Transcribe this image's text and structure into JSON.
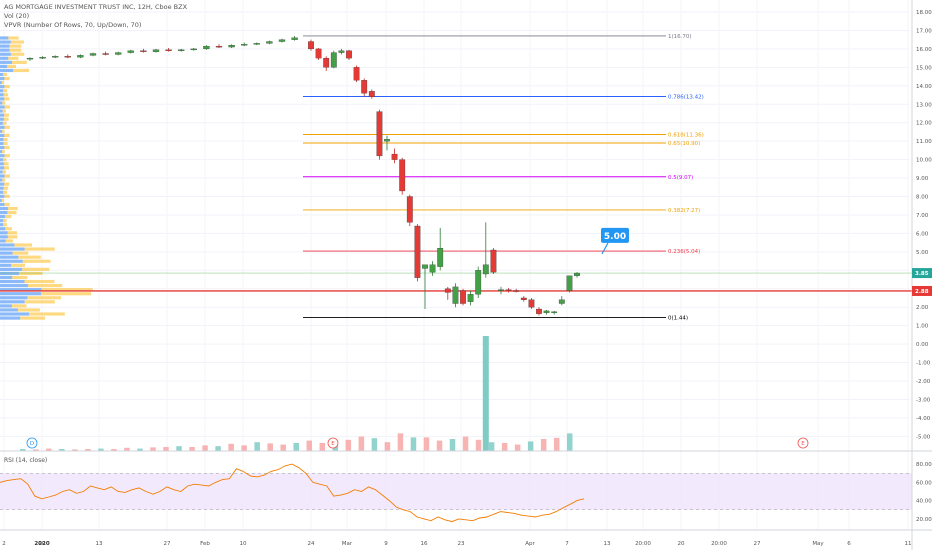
{
  "header": {
    "title": "AG MORTGAGE INVESTMENT TRUST INC, 12H, Cboe BZX",
    "vol_label": "Vol (20)",
    "vpvr_label": "VPVR (Number Of Rows, 70, Up/Down, 70)"
  },
  "chart_data": {
    "type": "candlestick",
    "price_axis": {
      "ticks": [
        "18.00",
        "17.00",
        "16.00",
        "15.00",
        "14.00",
        "13.00",
        "12.00",
        "11.00",
        "10.00",
        "9.00",
        "8.00",
        "7.00",
        "6.00",
        "5.00",
        "4.00",
        "3.00",
        "2.00",
        "1.00",
        "0.00",
        "-1.00",
        "-2.00",
        "-3.00",
        "-4.00",
        "-5.00"
      ],
      "last_price_label": "3.85",
      "support_label": "2.88"
    },
    "time_axis": {
      "labels": [
        "2",
        "20",
        "2020",
        "13",
        "27",
        "Feb",
        "10",
        "24",
        "Mar",
        "9",
        "16",
        "23",
        "Apr",
        "7",
        "13",
        "20:00",
        "20",
        "20:00",
        "27",
        "May",
        "6",
        "11"
      ]
    },
    "fibonacci": [
      {
        "label": "1(16.70)",
        "value": 16.7,
        "color": "#787b86"
      },
      {
        "label": "0.786(13.42)",
        "value": 13.42,
        "color": "#2962ff"
      },
      {
        "label": "0.618(11.36)",
        "value": 11.36,
        "color": "#f0a000"
      },
      {
        "label": "0.65(10.90)",
        "value": 10.9,
        "color": "#f0a000"
      },
      {
        "label": "0.5(9.07)",
        "value": 9.07,
        "color": "#d500f9"
      },
      {
        "label": "0.382(7.27)",
        "value": 7.27,
        "color": "#f0a000"
      },
      {
        "label": "0.236(5.04)",
        "value": 5.04,
        "color": "#f23645"
      },
      {
        "label": "0(1.44)",
        "value": 1.44,
        "color": "#000000"
      }
    ],
    "callout": {
      "label": "5.00",
      "value": 5.0
    },
    "candles_flat": [
      {
        "o": 15.45,
        "h": 15.55,
        "l": 15.35,
        "c": 15.5
      },
      {
        "o": 15.5,
        "h": 15.6,
        "l": 15.45,
        "c": 15.55
      },
      {
        "o": 15.55,
        "h": 15.65,
        "l": 15.5,
        "c": 15.6
      },
      {
        "o": 15.6,
        "h": 15.7,
        "l": 15.5,
        "c": 15.55
      },
      {
        "o": 15.55,
        "h": 15.7,
        "l": 15.5,
        "c": 15.65
      },
      {
        "o": 15.65,
        "h": 15.8,
        "l": 15.6,
        "c": 15.75
      },
      {
        "o": 15.75,
        "h": 15.85,
        "l": 15.65,
        "c": 15.7
      },
      {
        "o": 15.7,
        "h": 15.85,
        "l": 15.65,
        "c": 15.8
      },
      {
        "o": 15.8,
        "h": 15.95,
        "l": 15.75,
        "c": 15.9
      },
      {
        "o": 15.9,
        "h": 16.0,
        "l": 15.8,
        "c": 15.85
      },
      {
        "o": 15.85,
        "h": 16.0,
        "l": 15.8,
        "c": 15.95
      },
      {
        "o": 15.95,
        "h": 16.05,
        "l": 15.85,
        "c": 15.9
      },
      {
        "o": 15.9,
        "h": 16.0,
        "l": 15.85,
        "c": 15.95
      },
      {
        "o": 15.95,
        "h": 16.05,
        "l": 15.9,
        "c": 16.0
      },
      {
        "o": 16.0,
        "h": 16.2,
        "l": 15.95,
        "c": 16.15
      },
      {
        "o": 16.15,
        "h": 16.25,
        "l": 16.05,
        "c": 16.1
      },
      {
        "o": 16.1,
        "h": 16.25,
        "l": 16.05,
        "c": 16.2
      },
      {
        "o": 16.2,
        "h": 16.35,
        "l": 16.15,
        "c": 16.25
      },
      {
        "o": 16.25,
        "h": 16.35,
        "l": 16.2,
        "c": 16.3
      },
      {
        "o": 16.3,
        "h": 16.45,
        "l": 16.25,
        "c": 16.4
      },
      {
        "o": 16.4,
        "h": 16.55,
        "l": 16.35,
        "c": 16.5
      },
      {
        "o": 16.5,
        "h": 16.7,
        "l": 16.45,
        "c": 16.6
      }
    ],
    "candles_crash": [
      {
        "o": 16.4,
        "h": 16.5,
        "l": 15.9,
        "c": 16.0
      },
      {
        "o": 16.0,
        "h": 16.05,
        "l": 15.4,
        "c": 15.5
      },
      {
        "o": 15.5,
        "h": 15.6,
        "l": 14.8,
        "c": 15.0
      },
      {
        "o": 15.0,
        "h": 15.9,
        "l": 14.95,
        "c": 15.8
      },
      {
        "o": 15.8,
        "h": 16.0,
        "l": 15.7,
        "c": 15.9
      },
      {
        "o": 15.9,
        "h": 15.95,
        "l": 15.4,
        "c": 15.5
      },
      {
        "o": 15.0,
        "h": 15.1,
        "l": 14.2,
        "c": 14.3
      },
      {
        "o": 14.3,
        "h": 14.4,
        "l": 13.4,
        "c": 13.6
      },
      {
        "o": 13.7,
        "h": 13.8,
        "l": 13.3,
        "c": 13.4
      },
      {
        "o": 12.6,
        "h": 12.7,
        "l": 10.0,
        "c": 10.2
      },
      {
        "o": 11.0,
        "h": 11.3,
        "l": 10.5,
        "c": 11.1
      },
      {
        "o": 10.3,
        "h": 10.6,
        "l": 9.8,
        "c": 10.0
      },
      {
        "o": 10.0,
        "h": 10.1,
        "l": 8.1,
        "c": 8.3
      },
      {
        "o": 8.0,
        "h": 8.1,
        "l": 6.4,
        "c": 6.6
      },
      {
        "o": 6.4,
        "h": 6.5,
        "l": 3.4,
        "c": 3.6
      },
      {
        "o": 4.1,
        "h": 4.2,
        "l": 1.9,
        "c": 4.3
      },
      {
        "o": 3.9,
        "h": 4.5,
        "l": 3.7,
        "c": 4.3
      },
      {
        "o": 4.2,
        "h": 6.3,
        "l": 4.0,
        "c": 5.2
      },
      {
        "o": 3.0,
        "h": 3.1,
        "l": 2.4,
        "c": 2.8
      },
      {
        "o": 2.2,
        "h": 3.3,
        "l": 2.0,
        "c": 3.1
      },
      {
        "o": 2.9,
        "h": 3.0,
        "l": 2.1,
        "c": 2.2
      },
      {
        "o": 2.3,
        "h": 2.9,
        "l": 2.1,
        "c": 2.7
      },
      {
        "o": 2.7,
        "h": 4.2,
        "l": 2.5,
        "c": 4.0
      },
      {
        "o": 3.8,
        "h": 6.6,
        "l": 3.6,
        "c": 4.3
      },
      {
        "o": 5.1,
        "h": 5.2,
        "l": 3.8,
        "c": 3.9
      },
      {
        "o": 2.9,
        "h": 3.1,
        "l": 2.7,
        "c": 2.95
      },
      {
        "o": 2.95,
        "h": 3.05,
        "l": 2.8,
        "c": 2.9
      },
      {
        "o": 2.9,
        "h": 3.0,
        "l": 2.8,
        "c": 2.85
      },
      {
        "o": 2.5,
        "h": 2.6,
        "l": 2.3,
        "c": 2.4
      },
      {
        "o": 2.4,
        "h": 2.5,
        "l": 1.9,
        "c": 2.0
      },
      {
        "o": 1.9,
        "h": 2.0,
        "l": 1.55,
        "c": 1.65
      },
      {
        "o": 1.7,
        "h": 1.85,
        "l": 1.6,
        "c": 1.8
      },
      {
        "o": 1.7,
        "h": 1.8,
        "l": 1.6,
        "c": 1.75
      },
      {
        "o": 2.2,
        "h": 2.6,
        "l": 2.1,
        "c": 2.4
      },
      {
        "o": 2.9,
        "h": 3.4,
        "l": 2.8,
        "c": 3.7
      },
      {
        "o": 3.7,
        "h": 3.9,
        "l": 3.6,
        "c": 3.85
      }
    ],
    "volume": [
      0.05,
      0.04,
      0.06,
      0.05,
      0.04,
      0.05,
      0.06,
      0.05,
      0.08,
      0.06,
      0.09,
      0.1,
      0.12,
      0.1,
      0.14,
      0.12,
      0.18,
      0.14,
      0.22,
      0.19,
      0.16,
      0.2,
      0.26,
      0.2,
      0.24,
      0.28,
      0.36,
      0.32,
      0.22,
      0.44,
      0.34,
      0.34,
      0.26,
      0.3,
      0.36,
      0.28,
      0.22,
      0.2,
      0.16,
      0.24,
      0.3,
      0.33,
      0.44
    ],
    "volume_spike": 1.0,
    "rsi": {
      "label": "RSI (14, close)",
      "ticks": [
        "80.00",
        "60.00",
        "40.00",
        "20.00"
      ],
      "upper_band": 70,
      "lower_band": 30,
      "values": [
        60,
        62,
        63,
        64,
        58,
        45,
        42,
        44,
        46,
        50,
        52,
        48,
        50,
        56,
        54,
        52,
        55,
        50,
        49,
        52,
        54,
        50,
        47,
        50,
        55,
        52,
        50,
        56,
        58,
        57,
        56,
        60,
        63,
        64,
        75,
        72,
        67,
        66,
        68,
        72,
        74,
        78,
        80,
        76,
        70,
        60,
        58,
        56,
        45,
        46,
        48,
        52,
        50,
        55,
        52,
        46,
        40,
        33,
        30,
        28,
        22,
        20,
        18,
        22,
        19,
        17,
        20,
        19,
        18,
        21,
        22,
        25,
        28,
        27,
        26,
        24,
        23,
        22,
        24,
        25,
        28,
        32,
        36,
        40,
        42
      ]
    },
    "event_markers": [
      {
        "label": "D",
        "kind": "dividend"
      },
      {
        "label": "E",
        "kind": "earnings"
      },
      {
        "label": "E",
        "kind": "earnings"
      }
    ]
  }
}
